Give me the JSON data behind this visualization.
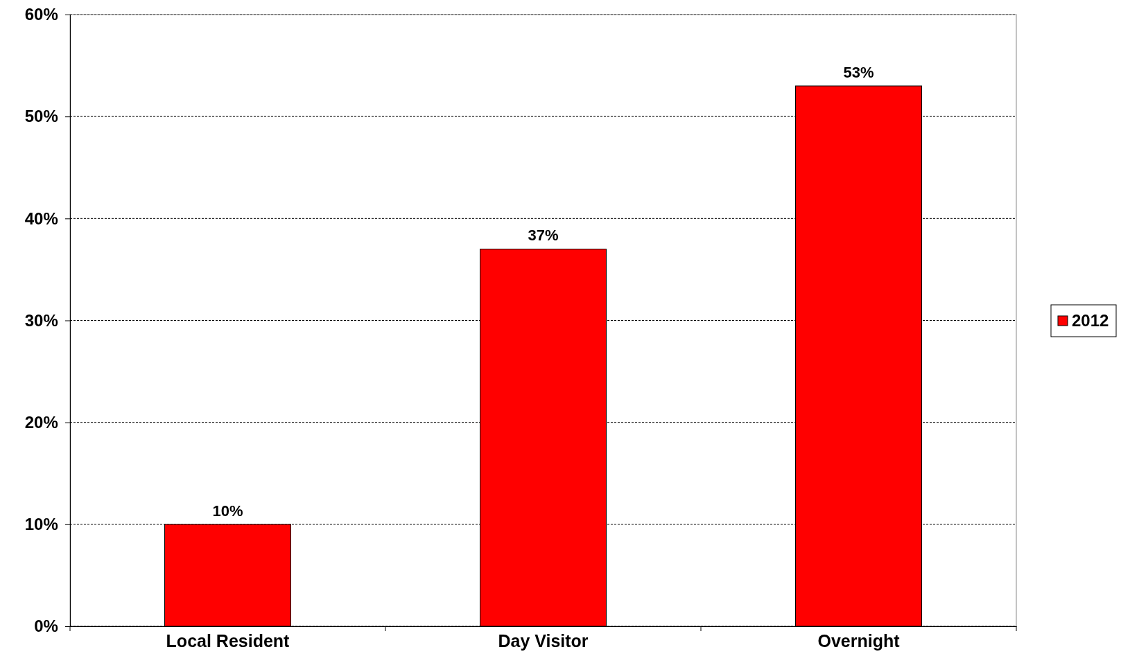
{
  "chart_data": {
    "type": "bar",
    "categories": [
      "Local Resident",
      "Day Visitor",
      "Overnight"
    ],
    "series": [
      {
        "name": "2012",
        "color": "#ff0000",
        "values": [
          10,
          37,
          53
        ],
        "value_labels": [
          "10%",
          "37%",
          "53%"
        ]
      }
    ],
    "ylim": [
      0,
      60
    ],
    "yticks": [
      {
        "value": 0,
        "label": "0%"
      },
      {
        "value": 10,
        "label": "10%"
      },
      {
        "value": 20,
        "label": "20%"
      },
      {
        "value": 30,
        "label": "30%"
      },
      {
        "value": 40,
        "label": "40%"
      },
      {
        "value": 50,
        "label": "50%"
      },
      {
        "value": 60,
        "label": "60%"
      }
    ],
    "grid": "y",
    "legend": "right"
  }
}
